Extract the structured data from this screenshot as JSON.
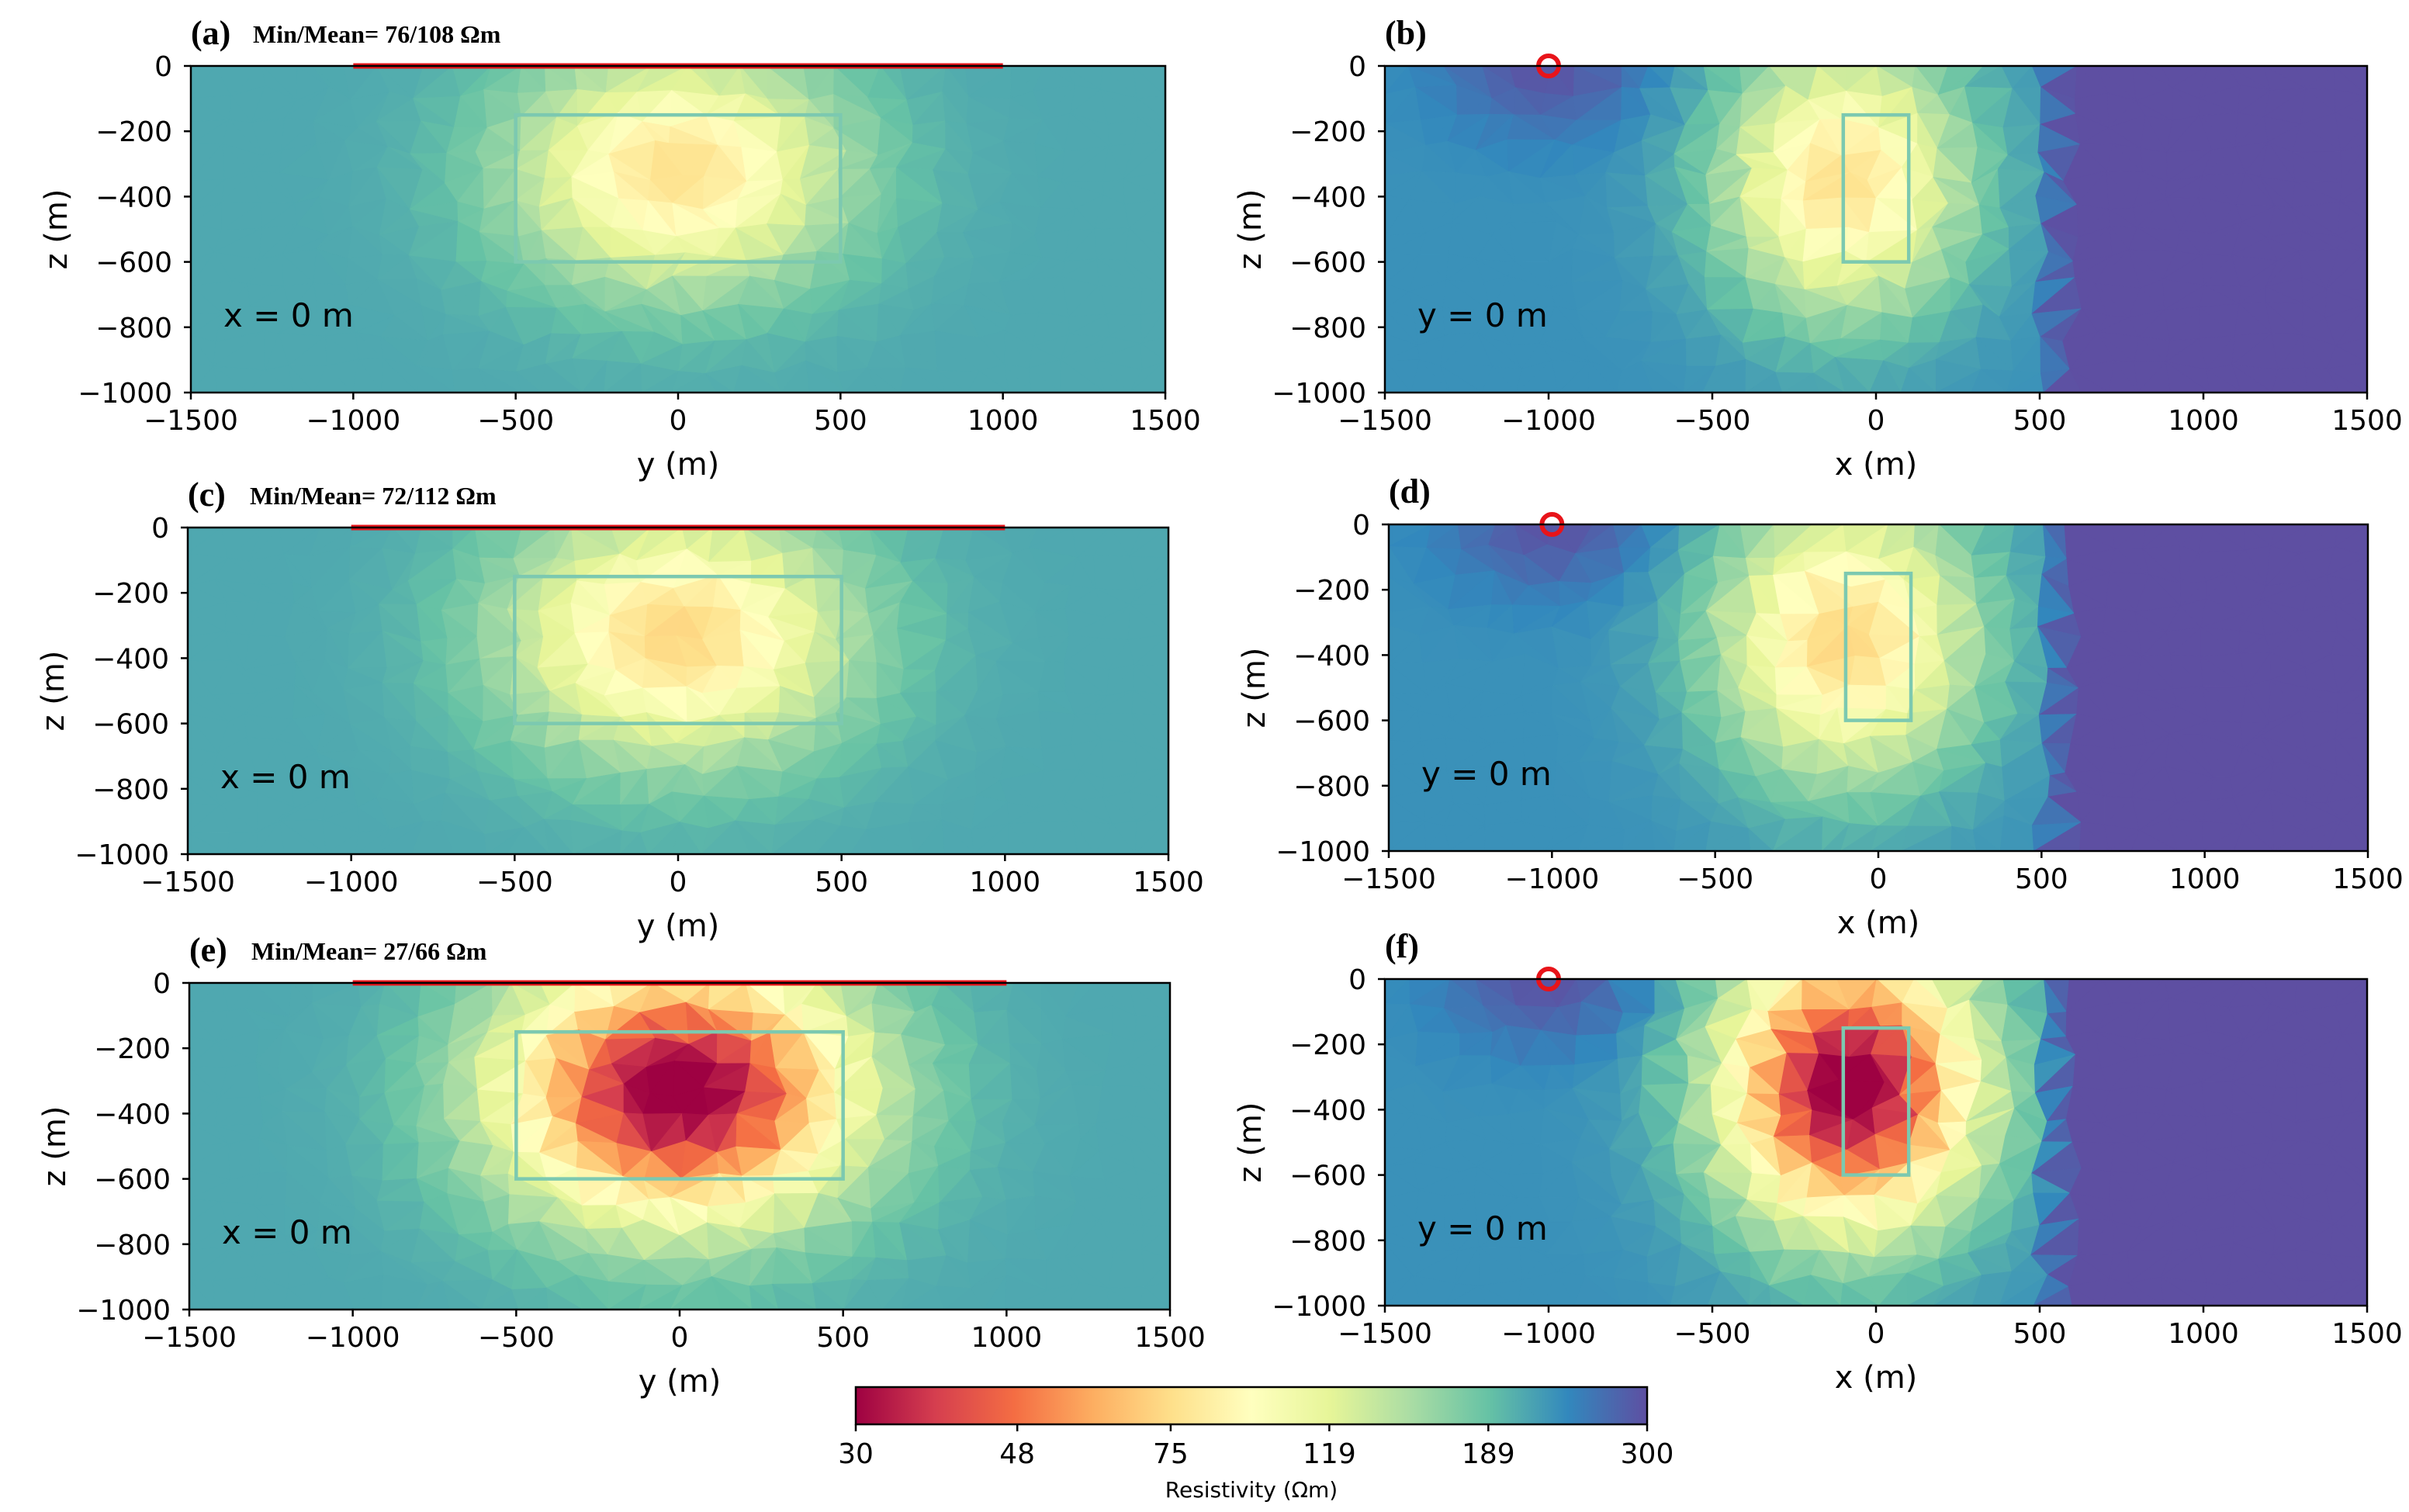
{
  "chart_data": [
    {
      "id": "a",
      "type": "heatmap",
      "label": "(a)",
      "title": "Min/Mean= 76/108 Ωm",
      "xlabel": "y (m)",
      "ylabel": "z (m)",
      "xlim": [
        -1500,
        1500
      ],
      "ylim": [
        -1000,
        0
      ],
      "xticks": [
        -1500,
        -1000,
        -500,
        0,
        500,
        1000,
        1500
      ],
      "xtick_labels": [
        "−1500",
        "−1000",
        "−500",
        "0",
        "500",
        "1000",
        "1500"
      ],
      "yticks": [
        0,
        -200,
        -400,
        -600,
        -800,
        -1000
      ],
      "ytick_labels": [
        "0",
        "−200",
        "−400",
        "−600",
        "−800",
        "−1000"
      ],
      "slice": "x = 0 m",
      "source_line": [
        -1000,
        1000
      ],
      "target_box": {
        "x": [
          -500,
          500
        ],
        "z": [
          -600,
          -150
        ]
      },
      "anomaly": {
        "center": [
          0,
          -320
        ],
        "radius": [
          600,
          430
        ],
        "min_resistivity": 76
      },
      "background_resistivity": 210
    },
    {
      "id": "b",
      "type": "heatmap",
      "label": "(b)",
      "title": "",
      "xlabel": "x (m)",
      "ylabel": "z (m)",
      "xlim": [
        -1500,
        1500
      ],
      "ylim": [
        -1000,
        0
      ],
      "xticks": [
        -1500,
        -1000,
        -500,
        0,
        500,
        1000,
        1500
      ],
      "xtick_labels": [
        "−1500",
        "−1000",
        "−500",
        "0",
        "500",
        "1000",
        "1500"
      ],
      "yticks": [
        0,
        -200,
        -400,
        -600,
        -800,
        -1000
      ],
      "ytick_labels": [
        "0",
        "−200",
        "−400",
        "−600",
        "−800",
        "−1000"
      ],
      "slice": "y = 0 m",
      "source_point": [
        -1000,
        0
      ],
      "target_box": {
        "x": [
          -100,
          100
        ],
        "z": [
          -600,
          -150
        ]
      },
      "anomaly": {
        "center": [
          -100,
          -350
        ],
        "radius": [
          450,
          500
        ],
        "min_resistivity": 76
      },
      "background_resistivity": 230,
      "right_region_start": 500
    },
    {
      "id": "c",
      "type": "heatmap",
      "label": "(c)",
      "title": "Min/Mean= 72/112 Ωm",
      "xlabel": "y (m)",
      "ylabel": "z (m)",
      "xlim": [
        -1500,
        1500
      ],
      "ylim": [
        -1000,
        0
      ],
      "xticks": [
        -1500,
        -1000,
        -500,
        0,
        500,
        1000,
        1500
      ],
      "xtick_labels": [
        "−1500",
        "−1000",
        "−500",
        "0",
        "500",
        "1000",
        "1500"
      ],
      "yticks": [
        0,
        -200,
        -400,
        -600,
        -800,
        -1000
      ],
      "ytick_labels": [
        "0",
        "−200",
        "−400",
        "−600",
        "−800",
        "−1000"
      ],
      "slice": "x = 0 m",
      "source_line": [
        -1000,
        1000
      ],
      "target_box": {
        "x": [
          -500,
          500
        ],
        "z": [
          -600,
          -150
        ]
      },
      "anomaly": {
        "center": [
          0,
          -330
        ],
        "radius": [
          620,
          450
        ],
        "min_resistivity": 72
      },
      "background_resistivity": 210
    },
    {
      "id": "d",
      "type": "heatmap",
      "label": "(d)",
      "title": "",
      "xlabel": "x (m)",
      "ylabel": "z (m)",
      "xlim": [
        -1500,
        1500
      ],
      "ylim": [
        -1000,
        0
      ],
      "xticks": [
        -1500,
        -1000,
        -500,
        0,
        500,
        1000,
        1500
      ],
      "xtick_labels": [
        "−1500",
        "−1000",
        "−500",
        "0",
        "500",
        "1000",
        "1500"
      ],
      "yticks": [
        0,
        -200,
        -400,
        -600,
        -800,
        -1000
      ],
      "ytick_labels": [
        "0",
        "−200",
        "−400",
        "−600",
        "−800",
        "−1000"
      ],
      "slice": "y = 0 m",
      "source_point": [
        -1000,
        0
      ],
      "target_box": {
        "x": [
          -100,
          100
        ],
        "z": [
          -600,
          -150
        ]
      },
      "anomaly": {
        "center": [
          -100,
          -350
        ],
        "radius": [
          480,
          520
        ],
        "min_resistivity": 72
      },
      "background_resistivity": 230,
      "right_region_start": 500
    },
    {
      "id": "e",
      "type": "heatmap",
      "label": "(e)",
      "title": "Min/Mean= 27/66 Ωm",
      "xlabel": "y (m)",
      "ylabel": "z (m)",
      "xlim": [
        -1500,
        1500
      ],
      "ylim": [
        -1000,
        0
      ],
      "xticks": [
        -1500,
        -1000,
        -500,
        0,
        500,
        1000,
        1500
      ],
      "xtick_labels": [
        "−1500",
        "−1000",
        "−500",
        "0",
        "500",
        "1000",
        "1500"
      ],
      "yticks": [
        0,
        -200,
        -400,
        -600,
        -800,
        -1000
      ],
      "ytick_labels": [
        "0",
        "−200",
        "−400",
        "−600",
        "−800",
        "−1000"
      ],
      "slice": "x = 0 m",
      "source_line": [
        -1000,
        1000
      ],
      "target_box": {
        "x": [
          -500,
          500
        ],
        "z": [
          -600,
          -150
        ]
      },
      "anomaly": {
        "center": [
          0,
          -330
        ],
        "radius": [
          640,
          470
        ],
        "min_resistivity": 27
      },
      "background_resistivity": 210
    },
    {
      "id": "f",
      "type": "heatmap",
      "label": "(f)",
      "title": "",
      "xlabel": "x (m)",
      "ylabel": "z (m)",
      "xlim": [
        -1500,
        1500
      ],
      "ylim": [
        -1000,
        0
      ],
      "xticks": [
        -1500,
        -1000,
        -500,
        0,
        500,
        1000,
        1500
      ],
      "xtick_labels": [
        "−1500",
        "−1000",
        "−500",
        "0",
        "500",
        "1000",
        "1500"
      ],
      "yticks": [
        0,
        -200,
        -400,
        -600,
        -800,
        -1000
      ],
      "ytick_labels": [
        "0",
        "−200",
        "−400",
        "−600",
        "−800",
        "−1000"
      ],
      "slice": "y = 0 m",
      "source_point": [
        -1000,
        0
      ],
      "target_box": {
        "x": [
          -100,
          100
        ],
        "z": [
          -600,
          -150
        ]
      },
      "anomaly": {
        "center": [
          -80,
          -330
        ],
        "radius": [
          470,
          520
        ],
        "min_resistivity": 27
      },
      "background_resistivity": 230,
      "right_region_start": 500
    }
  ],
  "colorbar": {
    "label": "Resistivity (Ωm)",
    "range": [
      30,
      300
    ],
    "scale": "log",
    "ticks": [
      30,
      48,
      75,
      119,
      189,
      300
    ],
    "tick_labels": [
      "30",
      "48",
      "75",
      "119",
      "189",
      "300"
    ]
  },
  "colors": {
    "source": "#e8141a",
    "target_box": "#7cc9b0",
    "right_region": "#5a4f9f"
  }
}
